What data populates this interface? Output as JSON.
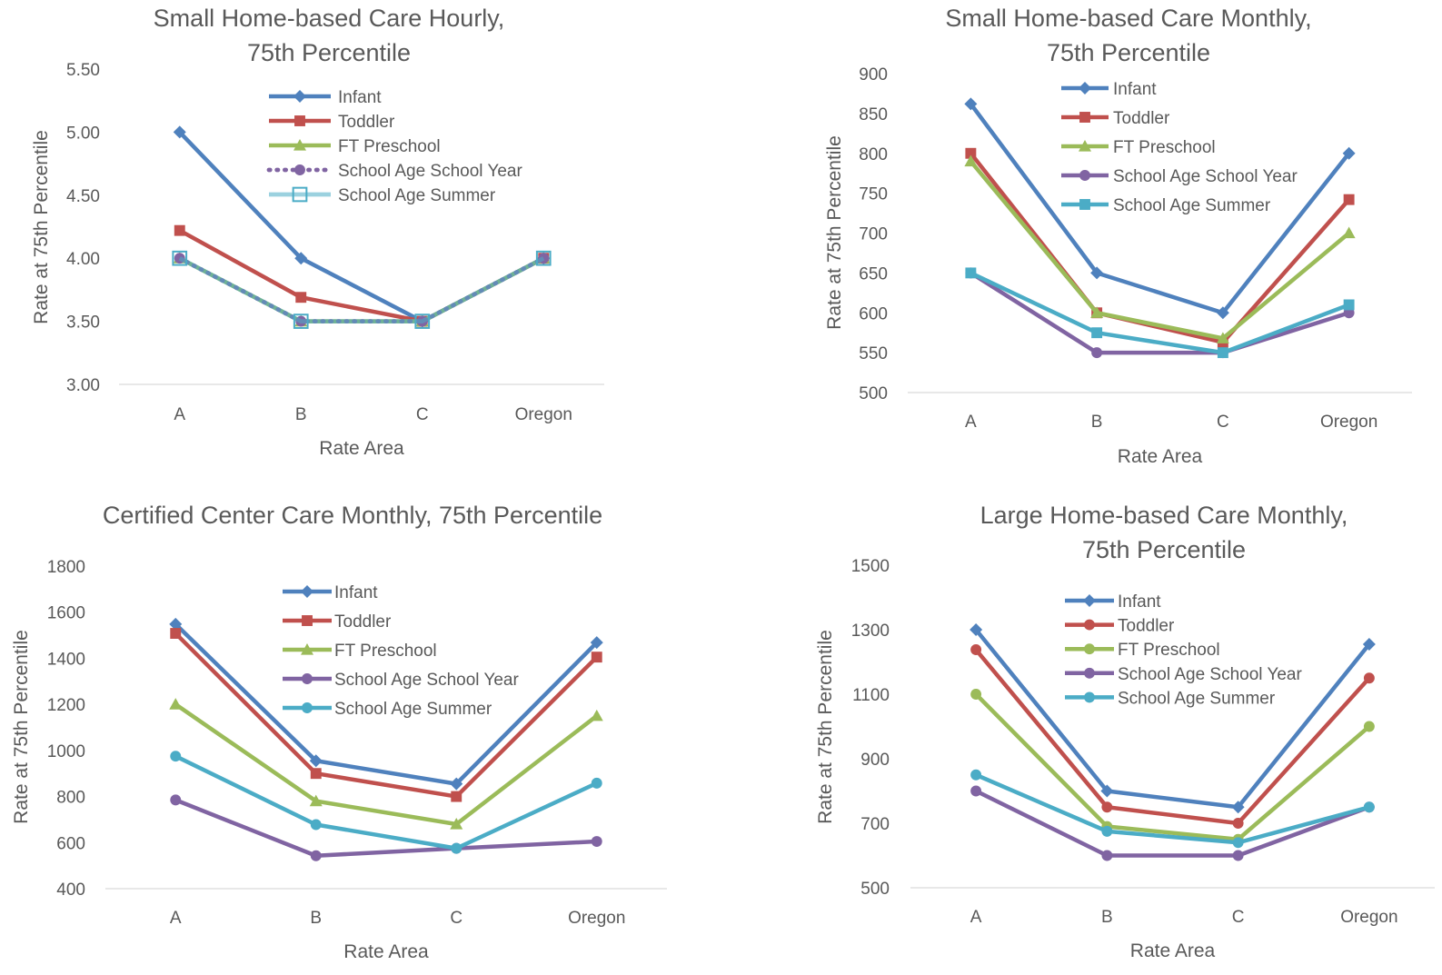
{
  "chart_data": [
    {
      "type": "line",
      "title": [
        "Small Home-based Care Hourly,",
        "75th Percentile"
      ],
      "xlabel": "Rate Area",
      "ylabel": "Rate at 75th Percentile",
      "categories": [
        "A",
        "B",
        "C",
        "Oregon"
      ],
      "ylim": [
        3.0,
        5.5
      ],
      "yticks": [
        "3.00",
        "3.50",
        "4.00",
        "4.50",
        "5.00",
        "5.50"
      ],
      "grid": false,
      "legend_position": "top-center",
      "series": [
        {
          "name": "Infant",
          "values": [
            5.0,
            4.0,
            3.5,
            4.0
          ],
          "color": "#4f81bd",
          "marker": "diamond",
          "dash": "solid"
        },
        {
          "name": "Toddler",
          "values": [
            4.22,
            3.69,
            3.5,
            4.0
          ],
          "color": "#c0504d",
          "marker": "square",
          "dash": "solid"
        },
        {
          "name": "FT Preschool",
          "values": [
            4.0,
            3.5,
            3.5,
            4.0
          ],
          "color": "#9bbb59",
          "marker": "triangle",
          "dash": "solid"
        },
        {
          "name": "School Age School Year",
          "values": [
            4.0,
            3.5,
            3.5,
            4.0
          ],
          "color": "#8064a2",
          "marker": "circle",
          "dash": "dotted"
        },
        {
          "name": "School Age Summer",
          "values": [
            4.0,
            3.5,
            3.5,
            4.0
          ],
          "color": "#4bacc6",
          "marker": "square-open",
          "dash": "solid-light"
        }
      ]
    },
    {
      "type": "line",
      "title": [
        "Small Home-based Care Monthly,",
        "75th Percentile"
      ],
      "xlabel": "Rate Area",
      "ylabel": "Rate at 75th Percentile",
      "categories": [
        "A",
        "B",
        "C",
        "Oregon"
      ],
      "ylim": [
        500,
        900
      ],
      "yticks": [
        "500",
        "550",
        "600",
        "650",
        "700",
        "750",
        "800",
        "850",
        "900"
      ],
      "grid": false,
      "legend_position": "top-center",
      "series": [
        {
          "name": "Infant",
          "values": [
            862,
            650,
            600,
            800
          ],
          "color": "#4f81bd",
          "marker": "diamond",
          "dash": "solid"
        },
        {
          "name": "Toddler",
          "values": [
            800,
            600,
            563,
            742
          ],
          "color": "#c0504d",
          "marker": "square",
          "dash": "solid"
        },
        {
          "name": "FT Preschool",
          "values": [
            790,
            600,
            568,
            700
          ],
          "color": "#9bbb59",
          "marker": "triangle",
          "dash": "solid"
        },
        {
          "name": "School Age School Year",
          "values": [
            650,
            550,
            550,
            600
          ],
          "color": "#8064a2",
          "marker": "circle",
          "dash": "solid"
        },
        {
          "name": "School Age Summer",
          "values": [
            650,
            575,
            550,
            610
          ],
          "color": "#4bacc6",
          "marker": "square",
          "dash": "solid"
        }
      ]
    },
    {
      "type": "line",
      "title": [
        "Certified Center Care Monthly, 75th Percentile"
      ],
      "xlabel": "Rate Area",
      "ylabel": "Rate at 75th Percentile",
      "categories": [
        "A",
        "B",
        "C",
        "Oregon"
      ],
      "ylim": [
        400,
        1800
      ],
      "yticks": [
        "400",
        "600",
        "800",
        "1000",
        "1200",
        "1400",
        "1600",
        "1800"
      ],
      "grid": false,
      "legend_position": "top-center",
      "series": [
        {
          "name": "Infant",
          "values": [
            1548,
            955,
            855,
            1468
          ],
          "color": "#4f81bd",
          "marker": "diamond",
          "dash": "solid"
        },
        {
          "name": "Toddler",
          "values": [
            1508,
            900,
            800,
            1405
          ],
          "color": "#c0504d",
          "marker": "square",
          "dash": "solid"
        },
        {
          "name": "FT Preschool",
          "values": [
            1200,
            780,
            680,
            1150
          ],
          "color": "#9bbb59",
          "marker": "triangle",
          "dash": "solid"
        },
        {
          "name": "School Age School Year",
          "values": [
            785,
            543,
            575,
            605
          ],
          "color": "#8064a2",
          "marker": "circle",
          "dash": "solid"
        },
        {
          "name": "School Age Summer",
          "values": [
            975,
            678,
            575,
            858
          ],
          "color": "#4bacc6",
          "marker": "circle",
          "dash": "solid"
        }
      ]
    },
    {
      "type": "line",
      "title": [
        "Large Home-based Care Monthly,",
        "75th Percentile"
      ],
      "xlabel": "Rate Area",
      "ylabel": "Rate at 75th Percentile",
      "categories": [
        "A",
        "B",
        "C",
        "Oregon"
      ],
      "ylim": [
        500,
        1500
      ],
      "yticks": [
        "500",
        "700",
        "900",
        "1100",
        "1300",
        "1500"
      ],
      "grid": false,
      "legend_position": "top-center",
      "series": [
        {
          "name": "Infant",
          "values": [
            1300,
            800,
            750,
            1255
          ],
          "color": "#4f81bd",
          "marker": "diamond",
          "dash": "solid"
        },
        {
          "name": "Toddler",
          "values": [
            1238,
            750,
            700,
            1150
          ],
          "color": "#c0504d",
          "marker": "circle",
          "dash": "solid"
        },
        {
          "name": "FT Preschool",
          "values": [
            1100,
            690,
            650,
            1000
          ],
          "color": "#9bbb59",
          "marker": "circle",
          "dash": "solid"
        },
        {
          "name": "School Age School Year",
          "values": [
            800,
            600,
            600,
            750
          ],
          "color": "#8064a2",
          "marker": "circle",
          "dash": "solid"
        },
        {
          "name": "School Age Summer",
          "values": [
            850,
            675,
            640,
            750
          ],
          "color": "#4bacc6",
          "marker": "circle",
          "dash": "solid"
        }
      ]
    }
  ]
}
